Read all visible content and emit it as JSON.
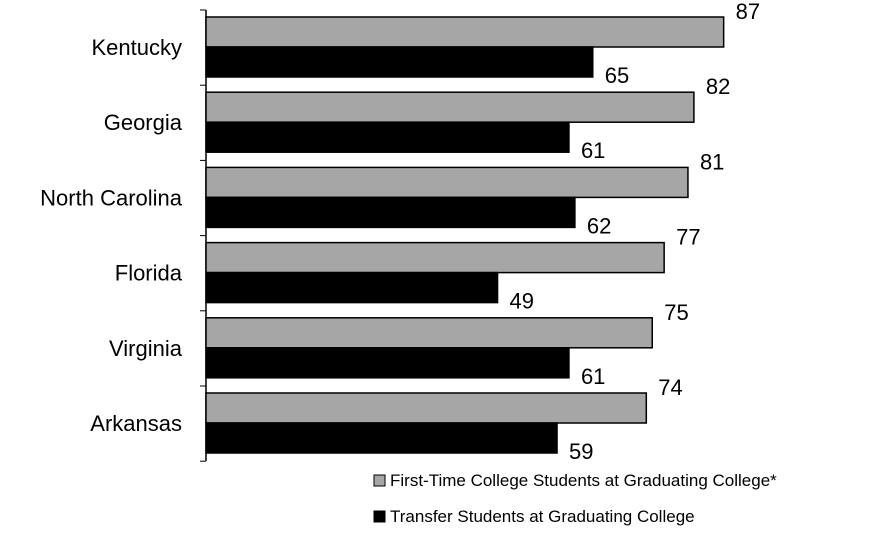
{
  "chart_data": {
    "type": "bar",
    "orientation": "horizontal",
    "categories": [
      "Kentucky",
      "Georgia",
      "North Carolina",
      "Florida",
      "Virginia",
      "Arkansas"
    ],
    "series": [
      {
        "name": "First-Time College Students at Graduating College*",
        "color": "#a6a6a6",
        "values": [
          87,
          82,
          81,
          77,
          75,
          74
        ]
      },
      {
        "name": "Transfer Students at Graduating College",
        "color": "#000000",
        "values": [
          65,
          61,
          62,
          49,
          61,
          59
        ]
      }
    ],
    "xlim": [
      0,
      100
    ],
    "grid": false,
    "legend_position": "bottom-right",
    "data_labels": true
  }
}
